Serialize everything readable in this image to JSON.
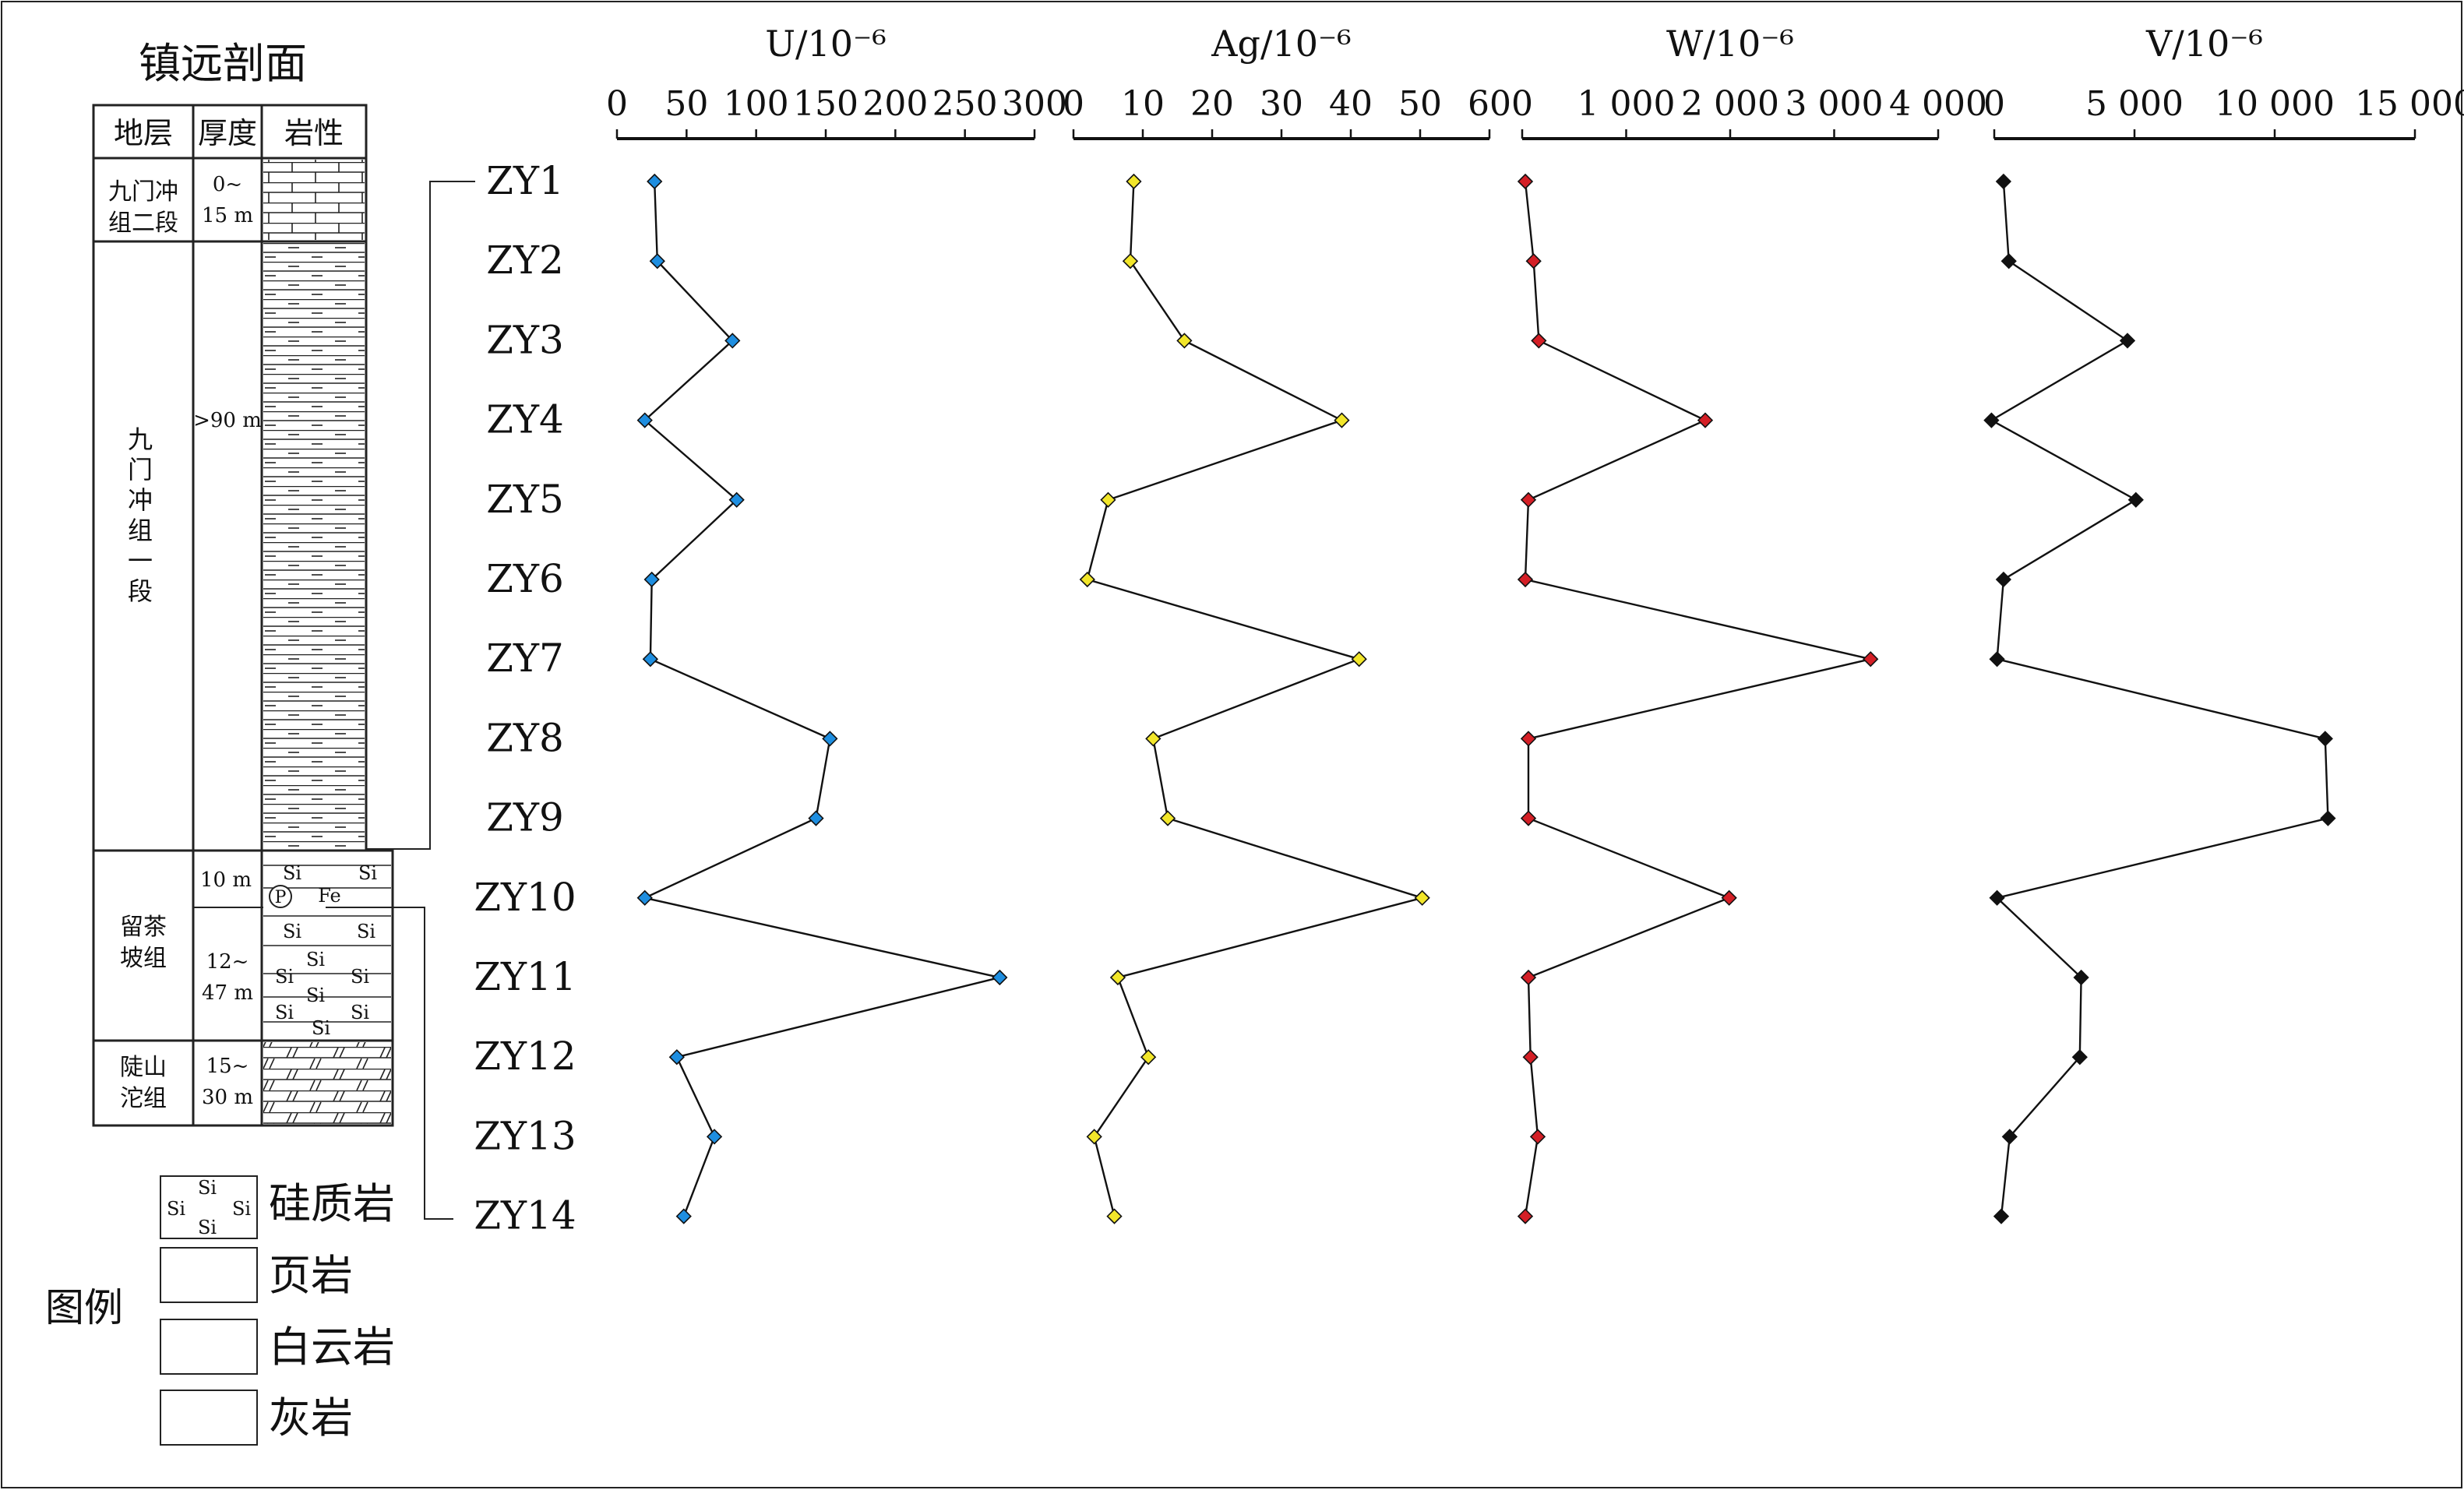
{
  "section": {
    "title": "镇远剖面",
    "headers": {
      "strata": "地层",
      "thickness": "厚度",
      "lithology": "岩性"
    },
    "units": [
      {
        "name": "九门冲组二段",
        "name_lines": [
          "九门冲",
          "组二段"
        ],
        "thickness": "0~15 m",
        "thickness_lines": [
          "0~",
          "15 m"
        ],
        "lithology": "limestone"
      },
      {
        "name": "九门冲组一段",
        "name_lines": [
          "九",
          "门",
          "冲",
          "组",
          "一",
          "段"
        ],
        "thickness": ">90 m",
        "thickness_lines": [
          ">90 m"
        ],
        "lithology": "shale"
      },
      {
        "name": "留茶坡组",
        "name_lines": [
          "留茶",
          "坡组"
        ],
        "thickness": "",
        "thickness_lines": [],
        "lithology": "siliceous"
      },
      {
        "name": "陡山沱组",
        "name_lines": [
          "陡山",
          "沱组"
        ],
        "thickness": "15~30 m",
        "thickness_lines": [
          "15~",
          "30 m"
        ],
        "lithology": "dolomite"
      }
    ],
    "sub_thickness": {
      "upper": "10 m",
      "lower_lines": [
        "12~",
        "47 m"
      ]
    },
    "lithology_marks": {
      "si": "Si",
      "p": "P",
      "fe": "Fe"
    }
  },
  "legend": {
    "title": "图例",
    "items": [
      {
        "label": "硅质岩",
        "pattern": "siliceous"
      },
      {
        "label": "页岩",
        "pattern": "shale"
      },
      {
        "label": "白云岩",
        "pattern": "dolomite"
      },
      {
        "label": "灰岩",
        "pattern": "limestone"
      }
    ]
  },
  "chart_data": {
    "type": "line",
    "orientation": "vertical-profile",
    "samples": [
      "ZY1",
      "ZY2",
      "ZY3",
      "ZY4",
      "ZY5",
      "ZY6",
      "ZY7",
      "ZY8",
      "ZY9",
      "ZY10",
      "ZY11",
      "ZY12",
      "ZY13",
      "ZY14"
    ],
    "panels": [
      {
        "title": "U/10⁻⁶",
        "xlim": [
          0,
          300
        ],
        "ticks": [
          0,
          50,
          100,
          150,
          200,
          250,
          300
        ],
        "tick_labels": [
          "0",
          "50",
          "100",
          "150",
          "200",
          "250",
          "300"
        ],
        "color": "#1e8ee0",
        "values": [
          27,
          29,
          83,
          20,
          86,
          25,
          24,
          153,
          143,
          20,
          275,
          43,
          70,
          48
        ]
      },
      {
        "title": "Ag/10⁻⁶",
        "xlim": [
          0,
          60
        ],
        "ticks": [
          0,
          10,
          20,
          30,
          40,
          50,
          60
        ],
        "tick_labels": [
          "0",
          "10",
          "20",
          "30",
          "40",
          "50",
          "60"
        ],
        "color": "#f2e62a",
        "values": [
          8.7,
          8.2,
          16.0,
          38.7,
          5.0,
          2.0,
          41.2,
          11.5,
          13.6,
          50.3,
          6.4,
          10.8,
          3.0,
          5.9
        ]
      },
      {
        "title": "W/10⁻⁶",
        "xlim": [
          0,
          4000
        ],
        "ticks": [
          0,
          1000,
          2000,
          3000,
          4000
        ],
        "tick_labels": [
          "0",
          "1 000",
          "2 000",
          "3 000",
          "4 000"
        ],
        "color": "#d41f26",
        "values": [
          30,
          110,
          160,
          1760,
          60,
          30,
          3350,
          60,
          60,
          1990,
          60,
          80,
          150,
          30
        ]
      },
      {
        "title": "V/10⁻⁶",
        "xlim": [
          0,
          15000
        ],
        "ticks": [
          0,
          5000,
          10000,
          15000
        ],
        "tick_labels": [
          "0",
          "5 000",
          "10 000",
          "15 000"
        ],
        "color": "#111111",
        "values": [
          330,
          520,
          4750,
          -100,
          5050,
          330,
          100,
          11800,
          11900,
          100,
          3100,
          3050,
          550,
          250
        ]
      }
    ]
  }
}
